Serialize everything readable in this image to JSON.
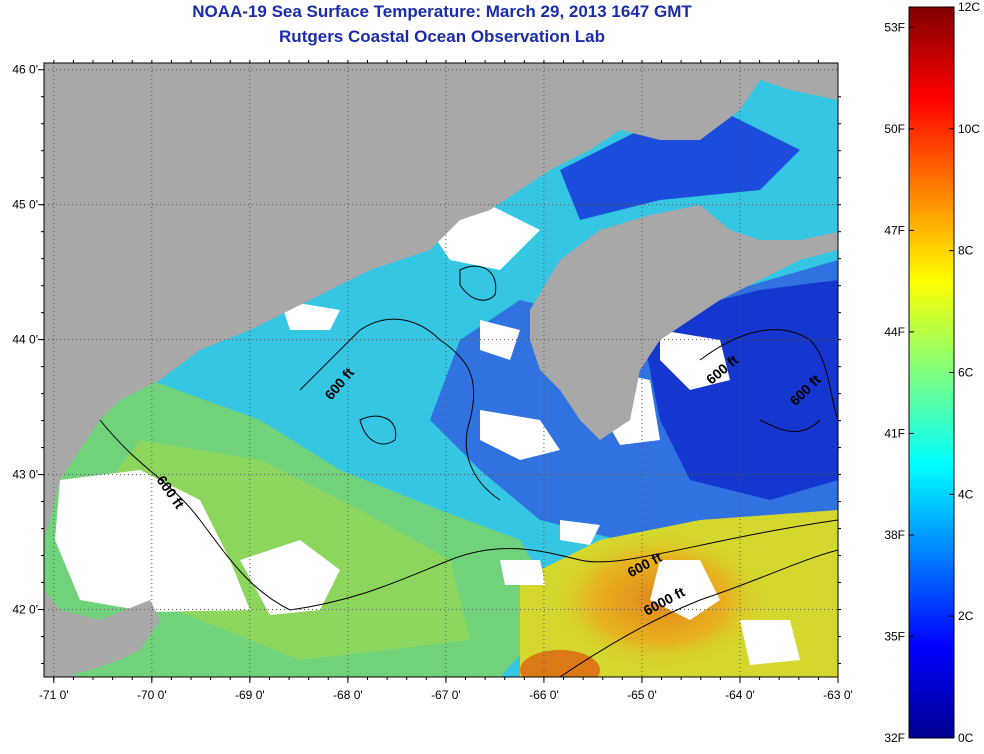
{
  "header": {
    "title": "NOAA-19 Sea Surface Temperature:  March 29, 2013 1647 GMT",
    "subtitle": "Rutgers Coastal Ocean Observation Lab"
  },
  "map": {
    "lon_range": [
      -71.1,
      -63.0
    ],
    "lat_range": [
      41.5,
      46.05
    ],
    "lon_ticks": [
      {
        "value": -71,
        "label": "-71 0'"
      },
      {
        "value": -70,
        "label": "-70 0'"
      },
      {
        "value": -69,
        "label": "-69 0'"
      },
      {
        "value": -68,
        "label": "-68 0'"
      },
      {
        "value": -67,
        "label": "-67 0'"
      },
      {
        "value": -66,
        "label": "-66 0'"
      },
      {
        "value": -65,
        "label": "-65 0'"
      },
      {
        "value": -64,
        "label": "-64 0'"
      },
      {
        "value": -63,
        "label": "-63 0'"
      }
    ],
    "lat_ticks": [
      {
        "value": 46,
        "label": "46 0'"
      },
      {
        "value": 45,
        "label": "45 0'"
      },
      {
        "value": 44,
        "label": "44 0'"
      },
      {
        "value": 43,
        "label": "43 0'"
      },
      {
        "value": 42,
        "label": "42 0'"
      }
    ],
    "contour_labels": [
      {
        "text": "600 ft",
        "lon": -68.05,
        "lat": 43.65,
        "rotate": -50
      },
      {
        "text": "600 ft",
        "lon": -69.85,
        "lat": 42.85,
        "rotate": 55
      },
      {
        "text": "600 ft",
        "lon": -64.15,
        "lat": 43.75,
        "rotate": -40
      },
      {
        "text": "600 ft",
        "lon": -63.3,
        "lat": 43.6,
        "rotate": -45
      },
      {
        "text": "600 ft",
        "lon": -64.95,
        "lat": 42.3,
        "rotate": -28
      },
      {
        "text": "6000 ft",
        "lon": -64.75,
        "lat": 42.03,
        "rotate": -28
      }
    ],
    "colors": {
      "land": "#a8a8a8",
      "cloud": "#ffffff"
    }
  },
  "colorbar": {
    "fahrenheit": [
      {
        "value": 53,
        "label": "53F"
      },
      {
        "value": 50,
        "label": "50F"
      },
      {
        "value": 47,
        "label": "47F"
      },
      {
        "value": 44,
        "label": "44F"
      },
      {
        "value": 41,
        "label": "41F"
      },
      {
        "value": 38,
        "label": "38F"
      },
      {
        "value": 35,
        "label": "35F"
      },
      {
        "value": 32,
        "label": "32F"
      }
    ],
    "celsius": [
      {
        "value": 12,
        "label": "12C"
      },
      {
        "value": 10,
        "label": "10C"
      },
      {
        "value": 8,
        "label": "8C"
      },
      {
        "value": 6,
        "label": "6C"
      },
      {
        "value": 4,
        "label": "4C"
      },
      {
        "value": 2,
        "label": "2C"
      },
      {
        "value": 0,
        "label": "0C"
      }
    ],
    "range_c": [
      0,
      12
    ]
  }
}
